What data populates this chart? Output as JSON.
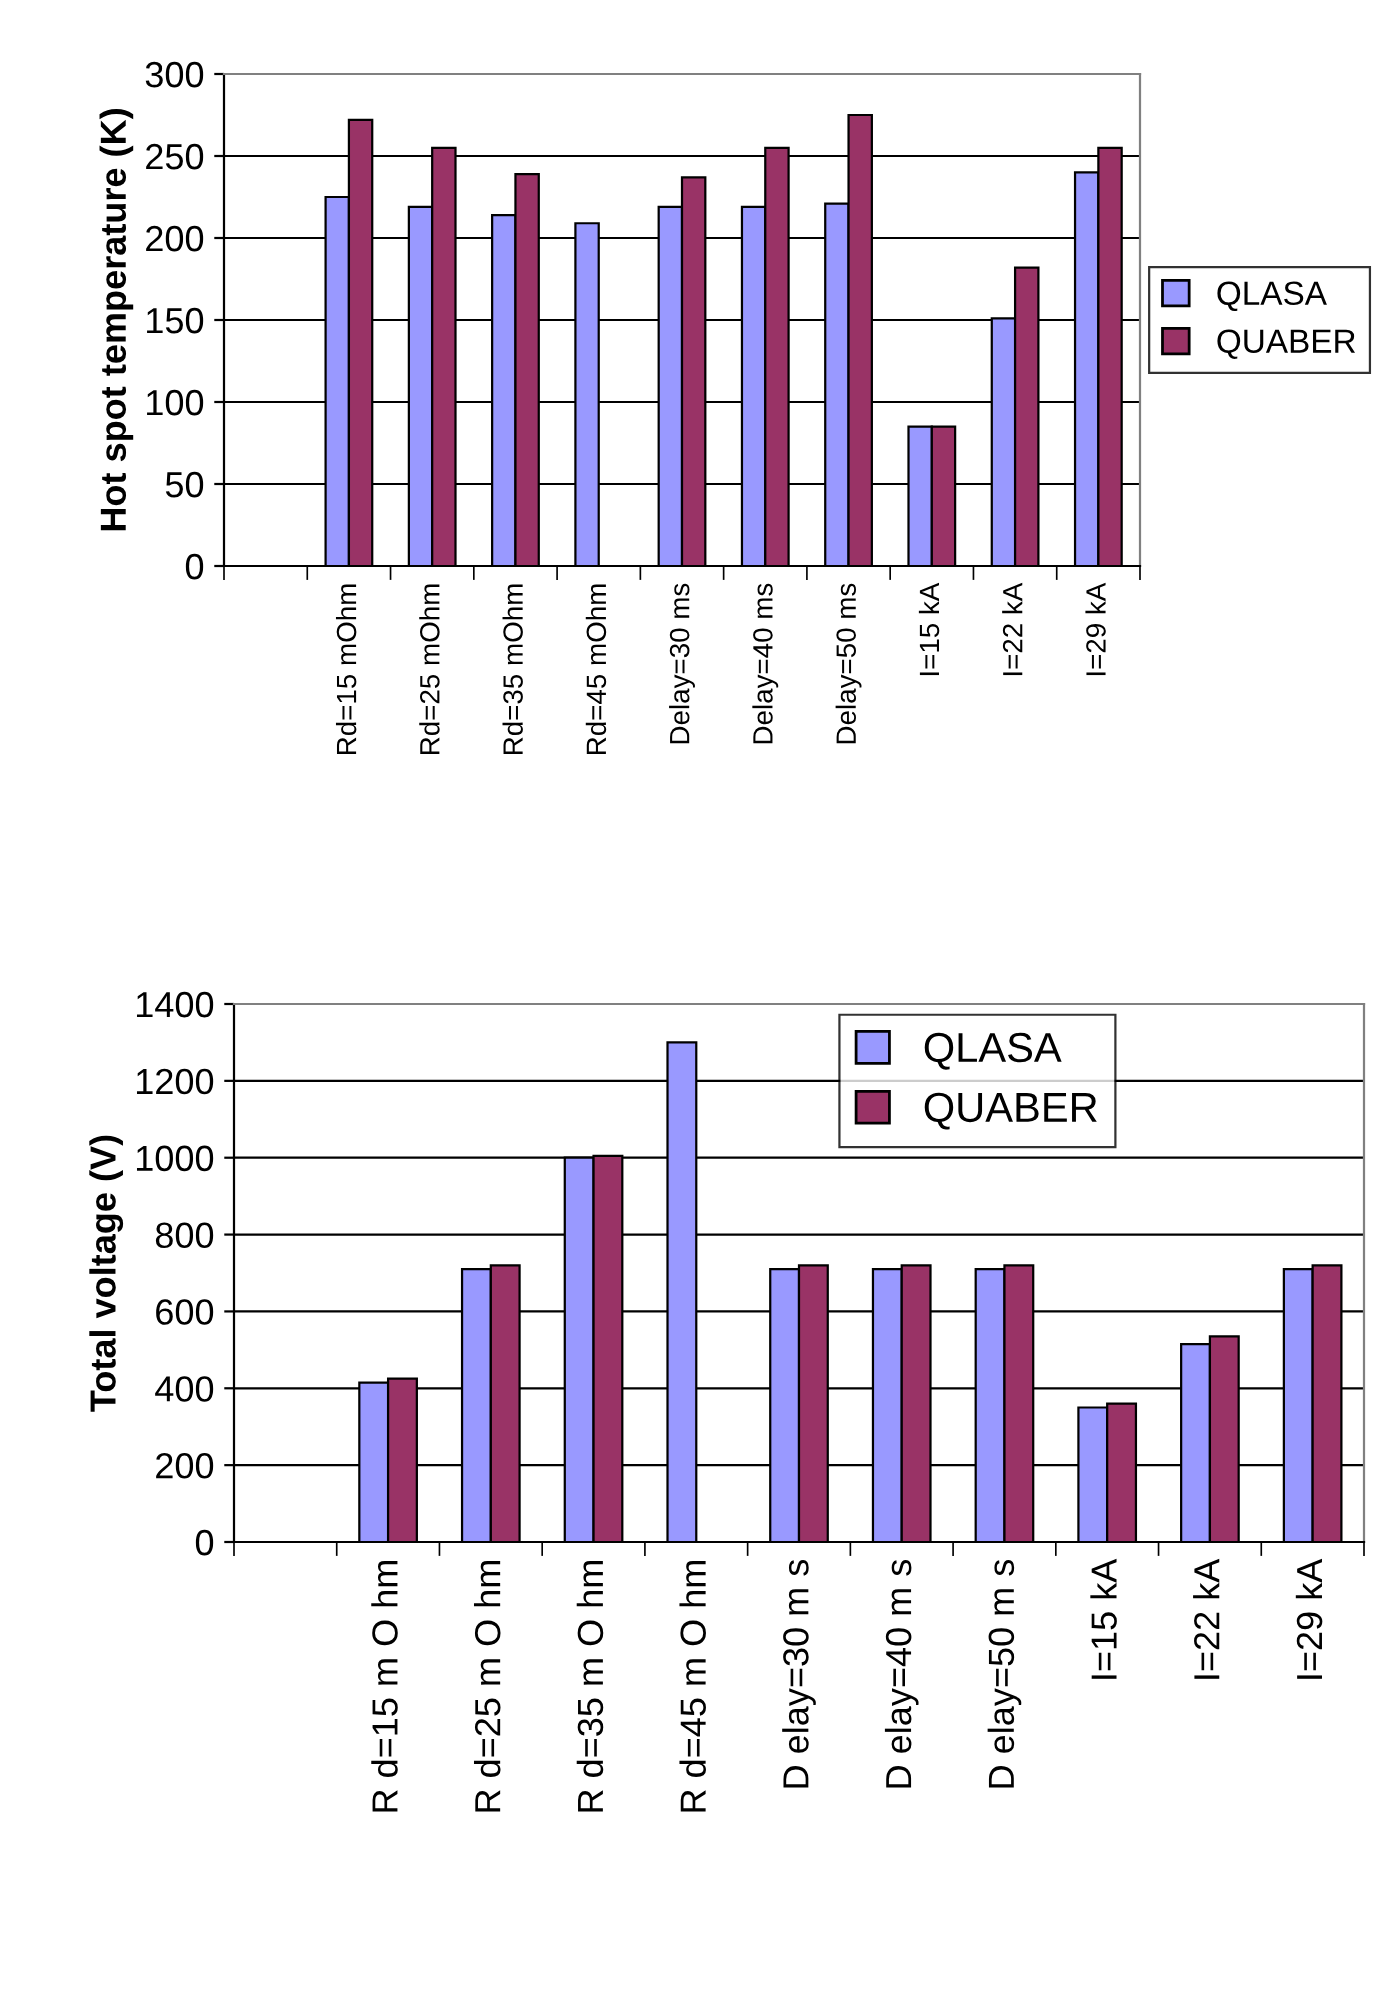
{
  "chart_data": [
    {
      "type": "bar",
      "ylabel": "Hot spot temperature (K)",
      "categories": [
        null,
        "Rd=15 mOhm",
        "Rd=25 mOhm",
        "Rd=35 mOhm",
        "Rd=45 mOhm",
        "Delay=30 ms",
        "Delay=40 ms",
        "Delay=50 ms",
        "I=15 kA",
        "I=22 kA",
        "I=29 kA"
      ],
      "series": [
        {
          "name": "QLASA",
          "color": "#9999ff",
          "values": [
            null,
            225,
            219,
            214,
            209,
            219,
            219,
            221,
            85,
            151,
            240
          ]
        },
        {
          "name": "QUABER",
          "color": "#993366",
          "values": [
            null,
            272,
            255,
            239,
            null,
            237,
            255,
            275,
            85,
            182,
            255
          ]
        }
      ],
      "ylim": [
        0,
        300
      ],
      "yticks": [
        0,
        50,
        100,
        150,
        200,
        250,
        300
      ],
      "grid": "y",
      "legend": "right"
    },
    {
      "type": "bar",
      "ylabel": "Total voltage (V)",
      "categories": [
        null,
        "R d=15 m O hm",
        "R d=25 m O hm",
        "R d=35 m O hm",
        "R d=45 m O hm",
        "D elay=30 m s",
        "D elay=40 m s",
        "D elay=50 m s",
        "I=15 kA",
        "I=22 kA",
        "I=29 kA"
      ],
      "series": [
        {
          "name": "QLASA",
          "color": "#9999ff",
          "values": [
            null,
            415,
            710,
            1000,
            1300,
            710,
            710,
            710,
            350,
            515,
            710
          ]
        },
        {
          "name": "QUABER",
          "color": "#993366",
          "values": [
            null,
            425,
            720,
            1005,
            null,
            720,
            720,
            720,
            360,
            535,
            720
          ]
        }
      ],
      "ylim": [
        0,
        1400
      ],
      "yticks": [
        0,
        200,
        400,
        600,
        800,
        1000,
        1200,
        1400
      ],
      "grid": "y",
      "legend": "top right"
    }
  ]
}
